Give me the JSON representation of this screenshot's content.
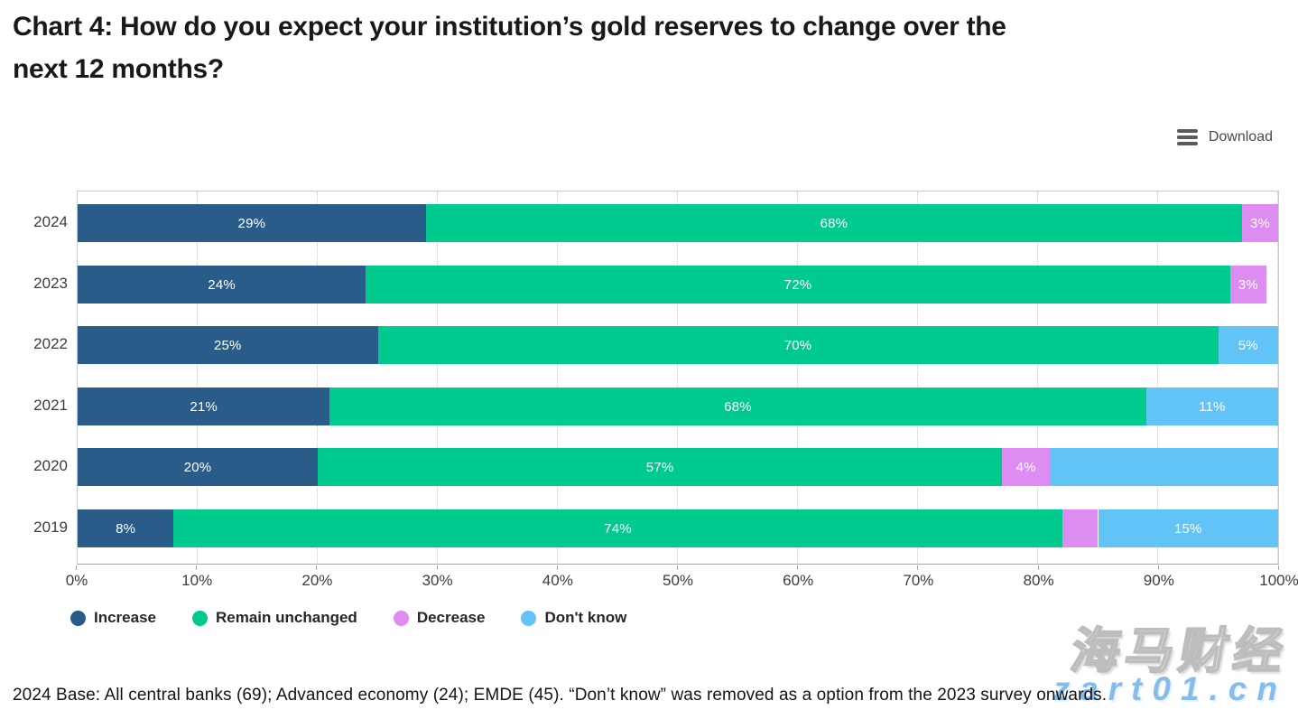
{
  "title": "Chart 4: How do you expect your institution’s gold reserves to change over the\nnext 12 months?",
  "toolbar": {
    "download_label": "Download"
  },
  "chart_data": {
    "type": "bar",
    "orientation": "horizontal",
    "stacked": true,
    "title": "Chart 4: How do you expect your institution’s gold reserves to change over the next 12 months?",
    "categories": [
      "2024",
      "2023",
      "2022",
      "2021",
      "2020",
      "2019"
    ],
    "series": [
      {
        "name": "Increase",
        "color": "#2a5c8a",
        "values": [
          29,
          24,
          25,
          21,
          20,
          8
        ],
        "labels": [
          "29%",
          "24%",
          "25%",
          "21%",
          "20%",
          "8%"
        ]
      },
      {
        "name": "Remain unchanged",
        "color": "#00ca8e",
        "values": [
          68,
          72,
          70,
          68,
          57,
          74
        ],
        "labels": [
          "68%",
          "72%",
          "70%",
          "68%",
          "57%",
          "74%"
        ]
      },
      {
        "name": "Decrease",
        "color": "#dd8cf2",
        "values": [
          3,
          3,
          0,
          0,
          4,
          3
        ],
        "labels": [
          "3%",
          "3%",
          null,
          null,
          "4%",
          null
        ]
      },
      {
        "name": "Don't know",
        "color": "#62c3f7",
        "values": [
          0,
          0,
          5,
          11,
          19,
          15
        ],
        "labels": [
          null,
          null,
          "5%",
          "11%",
          null,
          "15%"
        ]
      }
    ],
    "decrease_label_2019": "3%",
    "xlabel": "",
    "ylabel": "",
    "xlim": [
      0,
      100
    ],
    "x_ticks": [
      "0%",
      "10%",
      "20%",
      "30%",
      "40%",
      "50%",
      "60%",
      "70%",
      "80%",
      "90%",
      "100%"
    ],
    "grid": "vertical-dotted",
    "legend_position": "bottom",
    "label_color": "#ffffff"
  },
  "footnote": "2024 Base: All central banks (69); Advanced economy (24); EMDE (45). “Don’t know” was removed as a option from the 2023 survey onwards.",
  "watermark": {
    "line1": "海马财经",
    "line2": "zart01.cn"
  }
}
